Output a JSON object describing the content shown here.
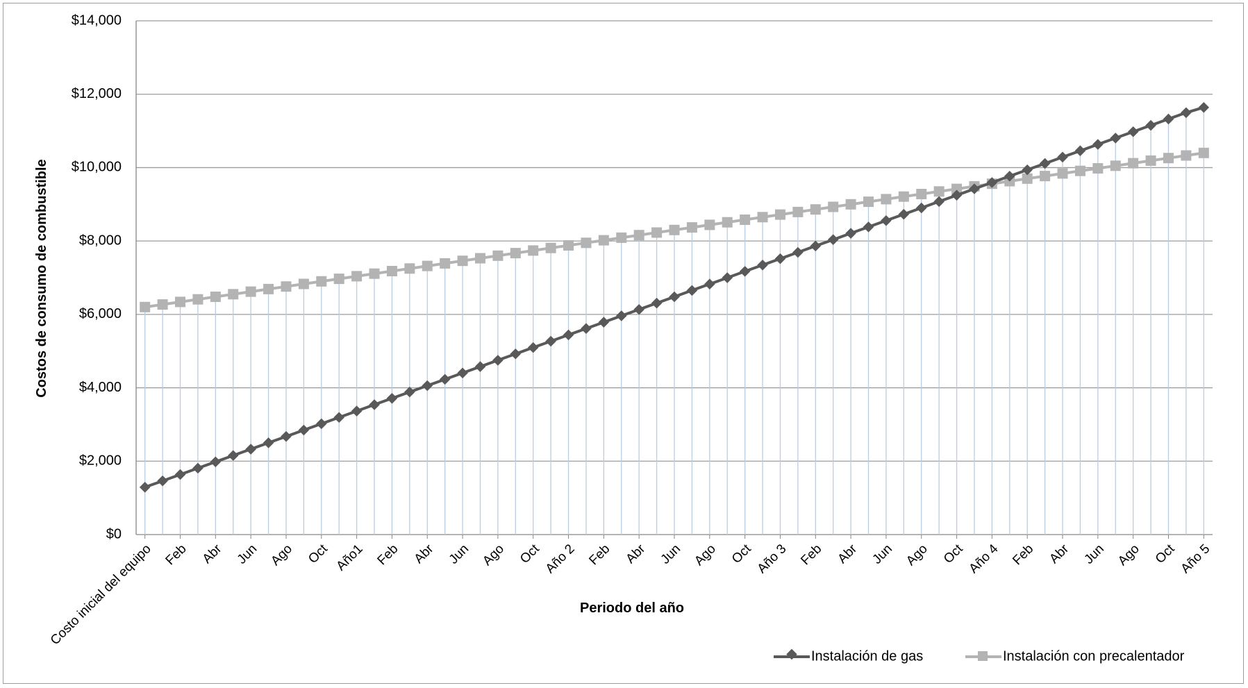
{
  "chart_data": {
    "type": "line",
    "xlabel": "Periodo del año",
    "ylabel": "Costos de consumo de combustible",
    "ylim": [
      0,
      14000
    ],
    "yticks": [
      "$0",
      "$2,000",
      "$4,000",
      "$6,000",
      "$8,000",
      "$10,000",
      "$12,000",
      "$14,000"
    ],
    "grid": "horizontal major gridlines; vertical drop lines at every point",
    "legend_position": "bottom-right",
    "categories": [
      "Costo inicial del equipo",
      "Ene",
      "Feb",
      "Mar",
      "Abr",
      "May",
      "Jun",
      "Jul",
      "Ago",
      "Sep",
      "Oct",
      "Nov",
      "Año1",
      "Ene",
      "Feb",
      "Mar",
      "Abr",
      "May",
      "Jun",
      "Jul",
      "Ago",
      "Sep",
      "Oct",
      "Nov",
      "Año 2",
      "Ene",
      "Feb",
      "Mar",
      "Abr",
      "May",
      "Jun",
      "Jul",
      "Ago",
      "Sep",
      "Oct",
      "Nov",
      "Año 3",
      "Ene",
      "Feb",
      "Mar",
      "Abr",
      "May",
      "Jun",
      "Jul",
      "Ago",
      "Sep",
      "Oct",
      "Nov",
      "Año 4",
      "Ene",
      "Feb",
      "Mar",
      "Abr",
      "May",
      "Jun",
      "Jul",
      "Ago",
      "Sep",
      "Oct",
      "Nov",
      "Año 5"
    ],
    "visible_tick_labels": [
      "Costo inicial del equipo",
      "Feb",
      "Abr",
      "Jun",
      "Ago",
      "Oct",
      "Año1",
      "Feb",
      "Abr",
      "Jun",
      "Ago",
      "Oct",
      "Año 2",
      "Feb",
      "Abr",
      "Jun",
      "Ago",
      "Oct",
      "Año 3",
      "Feb",
      "Abr",
      "Jun",
      "Ago",
      "Oct",
      "Año 4",
      "Feb",
      "Abr",
      "Jun",
      "Ago",
      "Oct",
      "Año 5"
    ],
    "series": [
      {
        "name": "Instalación de gas",
        "color": "#595959",
        "marker": "diamond",
        "values": [
          1290,
          1463,
          1636,
          1809,
          1982,
          2155,
          2328,
          2501,
          2674,
          2847,
          3020,
          3193,
          3366,
          3539,
          3712,
          3885,
          4058,
          4231,
          4404,
          4577,
          4750,
          4923,
          5096,
          5269,
          5442,
          5615,
          5788,
          5961,
          6134,
          6307,
          6480,
          6653,
          6826,
          6999,
          7172,
          7345,
          7518,
          7691,
          7864,
          8037,
          8210,
          8383,
          8556,
          8729,
          8902,
          9075,
          9248,
          9421,
          9594,
          9767,
          9940,
          10113,
          10286,
          10459,
          10632,
          10805,
          10978,
          11151,
          11324,
          11497,
          11640
        ]
      },
      {
        "name": "Instalación con precalentador",
        "color": "#b3b3b3",
        "marker": "square",
        "values": [
          6200,
          6270,
          6340,
          6410,
          6480,
          6550,
          6620,
          6690,
          6760,
          6830,
          6900,
          6970,
          7040,
          7110,
          7180,
          7250,
          7320,
          7390,
          7460,
          7530,
          7600,
          7670,
          7740,
          7810,
          7880,
          7950,
          8020,
          8090,
          8160,
          8230,
          8300,
          8370,
          8440,
          8510,
          8580,
          8650,
          8720,
          8790,
          8860,
          8930,
          9000,
          9070,
          9140,
          9210,
          9280,
          9350,
          9420,
          9490,
          9560,
          9630,
          9700,
          9770,
          9840,
          9910,
          9980,
          10050,
          10120,
          10190,
          10260,
          10330,
          10400
        ]
      }
    ]
  },
  "colors": {
    "gridline": "#9c9c9c",
    "dropline": "#b9cde2",
    "axis": "#868686"
  }
}
